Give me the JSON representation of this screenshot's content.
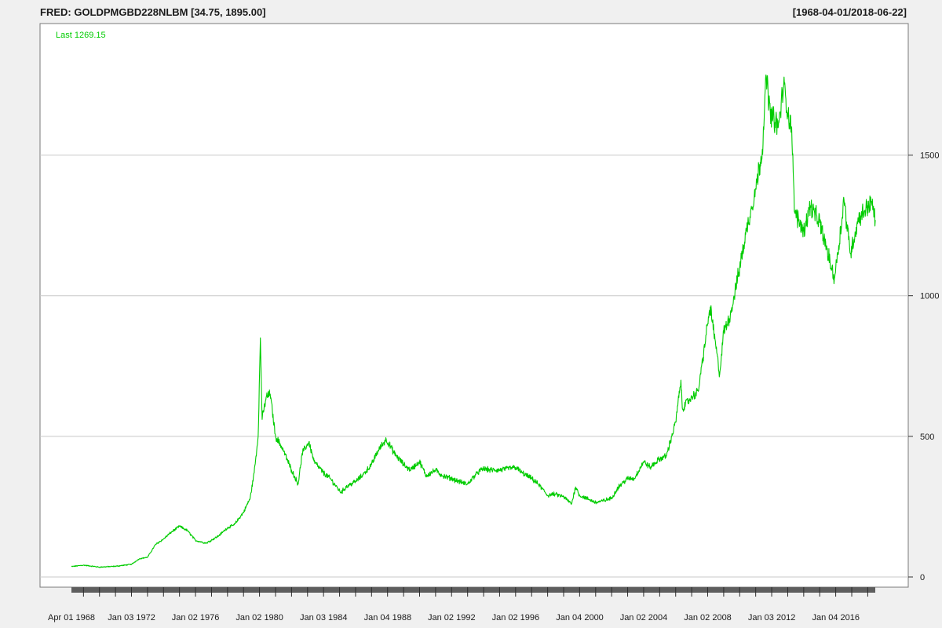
{
  "chart_data": {
    "type": "line",
    "title": "FRED: GOLDPMGBD228NLBM [34.75, 1895.00]",
    "date_range_label": "[1968-04-01/2018-06-22]",
    "last_label": "Last 1269.15",
    "line_color": "#00cc00",
    "grid": true,
    "xlim": [
      "1968-04-01",
      "2018-06-22"
    ],
    "ylim": [
      0,
      1895
    ],
    "y_ticks": [
      0,
      500,
      1000,
      1500
    ],
    "y_tick_labels": [
      "0",
      "500",
      "1000",
      "1500"
    ],
    "x_ticks": [
      {
        "date": "1968-04-01",
        "label": "Apr 01 1968"
      },
      {
        "date": "1972-01-03",
        "label": "Jan 03 1972"
      },
      {
        "date": "1976-01-02",
        "label": "Jan 02 1976"
      },
      {
        "date": "1980-01-02",
        "label": "Jan 02 1980"
      },
      {
        "date": "1984-01-03",
        "label": "Jan 03 1984"
      },
      {
        "date": "1988-01-04",
        "label": "Jan 04 1988"
      },
      {
        "date": "1992-01-02",
        "label": "Jan 02 1992"
      },
      {
        "date": "1996-01-02",
        "label": "Jan 02 1996"
      },
      {
        "date": "2000-01-04",
        "label": "Jan 04 2000"
      },
      {
        "date": "2004-01-02",
        "label": "Jan 02 2004"
      },
      {
        "date": "2008-01-02",
        "label": "Jan 02 2008"
      },
      {
        "date": "2012-01-03",
        "label": "Jan 03 2012"
      },
      {
        "date": "2016-01-04",
        "label": "Jan 04 2016"
      }
    ],
    "series": [
      {
        "x": [
          "1968-04-01",
          "1969-01-01",
          "1970-01-01",
          "1971-01-01",
          "1972-01-01",
          "1972-07-01",
          "1973-01-01",
          "1973-07-01",
          "1974-01-01",
          "1974-07-01",
          "1975-01-01",
          "1975-07-01",
          "1976-01-01",
          "1976-09-01",
          "1977-06-01",
          "1978-01-01",
          "1978-06-01",
          "1979-01-01",
          "1979-06-01",
          "1979-09-01",
          "1979-12-01",
          "1980-01-21",
          "1980-03-01",
          "1980-06-01",
          "1980-09-01",
          "1981-01-01",
          "1981-06-01",
          "1982-01-01",
          "1982-06-01",
          "1982-09-01",
          "1983-02-01",
          "1983-06-01",
          "1984-01-01",
          "1984-06-01",
          "1985-02-01",
          "1985-06-01",
          "1986-01-01",
          "1986-06-01",
          "1987-01-01",
          "1987-06-01",
          "1987-12-01",
          "1988-06-01",
          "1989-01-01",
          "1989-06-01",
          "1990-01-01",
          "1990-06-01",
          "1991-01-01",
          "1991-06-01",
          "1992-01-01",
          "1992-06-01",
          "1993-01-01",
          "1993-08-01",
          "1994-01-01",
          "1994-06-01",
          "1995-01-01",
          "1995-06-01",
          "1996-01-01",
          "1996-06-01",
          "1997-01-01",
          "1997-06-01",
          "1998-01-01",
          "1998-06-01",
          "1999-01-01",
          "1999-07-01",
          "1999-10-01",
          "2000-01-01",
          "2000-06-01",
          "2001-01-01",
          "2001-06-01",
          "2002-01-01",
          "2002-06-01",
          "2003-01-01",
          "2003-06-01",
          "2004-01-01",
          "2004-06-01",
          "2005-01-01",
          "2005-06-01",
          "2006-01-01",
          "2006-05-01",
          "2006-06-01",
          "2007-01-01",
          "2007-06-01",
          "2008-01-01",
          "2008-03-01",
          "2008-10-01",
          "2009-01-01",
          "2009-06-01",
          "2010-01-01",
          "2010-06-01",
          "2011-01-01",
          "2011-06-01",
          "2011-09-01",
          "2011-12-01",
          "2012-06-01",
          "2012-10-01",
          "2013-01-01",
          "2013-04-01",
          "2013-06-01",
          "2014-01-01",
          "2014-06-01",
          "2015-01-01",
          "2015-06-01",
          "2015-12-01",
          "2016-06-01",
          "2016-07-01",
          "2016-12-01",
          "2017-06-01",
          "2018-01-01",
          "2018-04-01",
          "2018-06-22"
        ],
        "y": [
          37,
          42,
          35,
          38,
          45,
          65,
          70,
          115,
          135,
          160,
          180,
          165,
          130,
          120,
          145,
          175,
          185,
          230,
          280,
          370,
          500,
          850,
          560,
          640,
          650,
          500,
          460,
          380,
          330,
          440,
          480,
          410,
          370,
          350,
          300,
          320,
          340,
          360,
          400,
          450,
          490,
          440,
          400,
          380,
          410,
          360,
          380,
          360,
          350,
          340,
          330,
          370,
          385,
          380,
          380,
          385,
          390,
          370,
          350,
          330,
          290,
          295,
          285,
          260,
          320,
          290,
          280,
          265,
          270,
          280,
          320,
          350,
          350,
          410,
          390,
          420,
          430,
          550,
          700,
          600,
          640,
          660,
          900,
          960,
          720,
          870,
          930,
          1100,
          1230,
          1380,
          1520,
          1780,
          1650,
          1600,
          1750,
          1650,
          1600,
          1300,
          1230,
          1320,
          1260,
          1170,
          1060,
          1280,
          1350,
          1150,
          1270,
          1320,
          1330,
          1269.15
        ]
      }
    ]
  }
}
